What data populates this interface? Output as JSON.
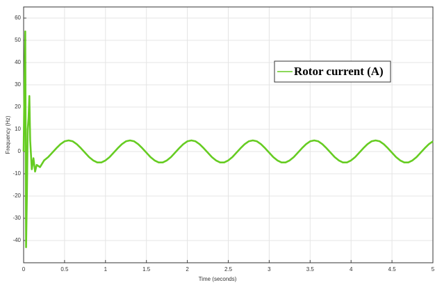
{
  "chart_data": {
    "type": "line",
    "xlabel": "Time (seconds)",
    "ylabel": "Frequency (Hz)",
    "x": [
      0,
      0.01,
      0.02,
      0.03,
      0.04,
      0.05,
      0.06,
      0.07,
      0.08,
      0.1,
      0.12,
      0.14,
      0.16,
      0.2,
      0.25,
      0.3,
      0.35,
      0.4,
      0.45,
      0.5,
      0.55,
      0.6,
      0.65,
      0.7,
      0.75,
      0.8,
      0.85,
      0.9,
      0.95,
      1,
      1.05,
      1.1,
      1.15,
      1.2,
      1.25,
      1.3,
      1.35,
      1.4,
      1.45,
      1.5,
      1.55,
      1.6,
      1.65,
      1.7,
      1.75,
      1.8,
      1.85,
      1.9,
      1.95,
      2,
      2.05,
      2.1,
      2.15,
      2.2,
      2.25,
      2.3,
      2.35,
      2.4,
      2.45,
      2.5,
      2.55,
      2.6,
      2.65,
      2.7,
      2.75,
      2.8,
      2.85,
      2.9,
      2.95,
      3,
      3.05,
      3.1,
      3.15,
      3.2,
      3.25,
      3.3,
      3.35,
      3.4,
      3.45,
      3.5,
      3.55,
      3.6,
      3.65,
      3.7,
      3.75,
      3.8,
      3.85,
      3.9,
      3.95,
      4,
      4.05,
      4.1,
      4.15,
      4.2,
      4.25,
      4.3,
      4.35,
      4.4,
      4.45,
      4.5,
      4.55,
      4.6,
      4.65,
      4.7,
      4.75,
      4.8,
      4.85,
      4.9,
      4.95,
      5
    ],
    "series": [
      {
        "name": "Rotor current (A)",
        "color": "#66cc22",
        "values": [
          0,
          30,
          54,
          -43,
          -20,
          10,
          15,
          25,
          5,
          -8,
          -3,
          -9,
          -6,
          -7,
          -4.0,
          -2.5,
          -0.5,
          1.5,
          3.3,
          4.6,
          5.0,
          4.6,
          3.3,
          1.5,
          -0.5,
          -2.5,
          -4.0,
          -4.9,
          -4.9,
          -4.0,
          -2.5,
          -0.5,
          1.5,
          3.3,
          4.6,
          5.0,
          4.6,
          3.3,
          1.5,
          -0.5,
          -2.5,
          -4.0,
          -4.9,
          -4.9,
          -4.0,
          -2.5,
          -0.5,
          1.5,
          3.3,
          4.6,
          5.0,
          4.6,
          3.3,
          1.5,
          -0.5,
          -2.5,
          -4.0,
          -4.9,
          -4.9,
          -4.0,
          -2.5,
          -0.5,
          1.5,
          3.3,
          4.6,
          5.0,
          4.6,
          3.3,
          1.5,
          -0.5,
          -2.5,
          -4.0,
          -4.9,
          -4.9,
          -4.0,
          -2.5,
          -0.5,
          1.5,
          3.3,
          4.6,
          5.0,
          4.6,
          3.3,
          1.5,
          -0.5,
          -2.5,
          -4.0,
          -4.9,
          -4.9,
          -4.0,
          -2.5,
          -0.5,
          1.5,
          3.3,
          4.6,
          5.0,
          4.6,
          3.3,
          1.5,
          -0.5,
          -2.5,
          -4.0,
          -4.9,
          -4.9,
          -4.0,
          -2.5,
          -0.5,
          1.5,
          3.3,
          4.6
        ]
      }
    ],
    "xlim": [
      0,
      5
    ],
    "xticks": [
      0,
      0.5,
      1,
      1.5,
      2,
      2.5,
      3,
      3.5,
      4,
      4.5,
      5
    ],
    "ylim": [
      -50,
      65
    ],
    "yticks": [
      -40,
      -30,
      -20,
      -10,
      0,
      10,
      20,
      30,
      40,
      50,
      60
    ],
    "grid": true,
    "legend": "upper right"
  }
}
